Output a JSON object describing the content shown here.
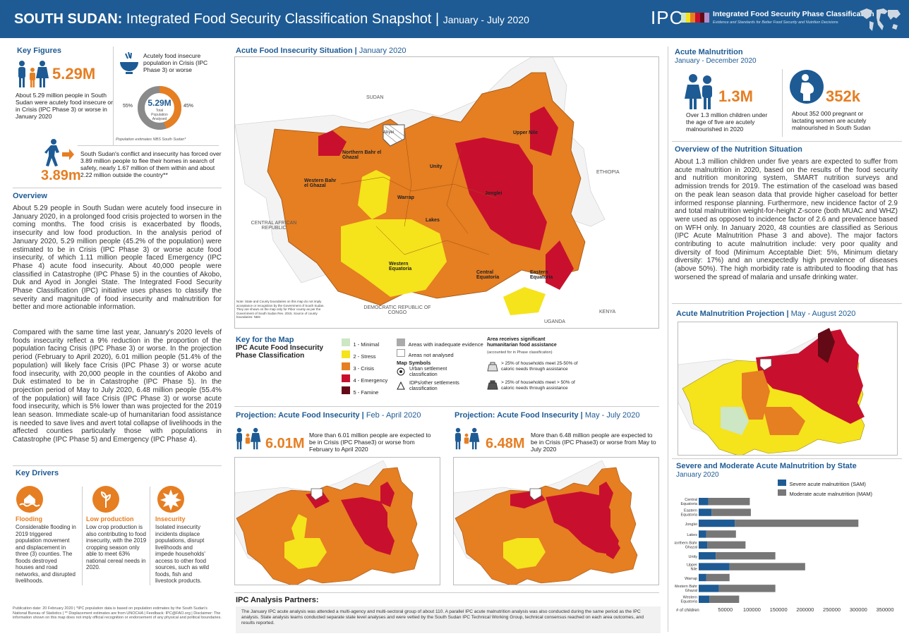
{
  "header": {
    "country": "SOUTH SUDAN:",
    "title": "Integrated Food Security Classification Snapshot",
    "sep": "|",
    "period": "January - July 2020",
    "ipc_logo": "IPC",
    "ipc_name": "Integrated Food Security Phase Classification",
    "ipc_tagline": "Evidence and Standards for Better Food Security and Nutrition Decisions"
  },
  "key_figures": {
    "title": "Key Figures",
    "figure1_value": "5.29M",
    "figure1_text": "About 5.29 million people in South Sudan were acutely food insecure or in Crisis (IPC Phase 3) or worse in January 2020",
    "donut_caption": "Acutely food insecure population in Crisis (IPC Phase 3) or worse",
    "donut_center_value": "5.29M",
    "donut_center_label": "Total Population Analysed",
    "donut_left_pct": "55%",
    "donut_right_pct": "45%",
    "donut_share": 45,
    "population_note": "Population estimates NBS South Sudan*",
    "displaced_value": "3.89m",
    "displaced_text": "South Sudan's conflict and insecurity has forced over 3.89 million people to flee their homes in search of safety, nearly 1.67 million of them within and about 2.22 million outside the country**"
  },
  "overview": {
    "title": "Overview",
    "para1": "About 5.29 people in South Sudan were acutely food insecure in January 2020, in a prolonged food crisis projected to worsen in the coming months. The food crisis is exacerbated by floods, insecurity and low food production. In the analysis period of January 2020, 5.29 million people (45.2% of the population) were estimated to be in Crisis (IPC Phase 3) or worse acute food insecurity, of which 1.11 million people faced Emergency (IPC Phase 4) acute food insecurity. About 40,000 people were classified in Catastrophe (IPC Phase 5) in the counties of Akobo, Duk and Ayod in Jonglei State. The Integrated Food Security Phase Classification (IPC) initiative uses phases to classify the severity and magnitude of food insecurity and malnutrition for better and more actionable information.",
    "para2": "Compared with the same time last year, January's 2020 levels of foods insecurity reflect a 9% reduction in the proportion of the population facing Crisis (IPC Phase 3) or worse. In the projection period (February to April 2020), 6.01 million people (51.4% of the population) will likely face Crisis (IPC Phase 3) or worse acute food insecurity, with 20,000 people in the counties of Akobo and Duk estimated to be in Catastrophe (IPC Phase 5). In the projection period of May to July 2020, 6.48 million people (55.4% of the population) will face Crisis (IPC Phase 3) or worse acute food insecurity, which is 5% lower than was projected for the 2019 lean season. Immediate scale-up of humanitarian food assistance is needed to save lives and avert total collapse of livelihoods in the affected counties particularly those with populations in Catastrophe (IPC Phase 5) and Emergency (IPC Phase 4)."
  },
  "key_drivers": {
    "title": "Key Drivers",
    "items": [
      {
        "title": "Flooding",
        "text": "Considerable flooding in 2019 triggered population movement and displacement in three (3) counties. The floods destroyed houses and road networks, and disrupted livelihoods."
      },
      {
        "title": "Low production",
        "text": "Low crop production is also contributing to food insecurity, with the 2019 cropping season only able to meet 63% national cereal needs in 2020."
      },
      {
        "title": "Insecurity",
        "text": "Isolated insecurity incidents displace populations, disrupt livelihoods and impede households' access to other food sources, such as wild foods, fish and livestock products."
      }
    ]
  },
  "footer_note": "Publication date: 20 February 2020 | *IPC population data is based on population estimates by the South Sudan's National Bureau of Statistics | ** Displacement estimates are from UNOCHA | Feedback: IPC@FAO.org | Disclaimer: The information shown on this map does not imply official recognition or endorsement of any physical and political boundaries.",
  "main_map": {
    "title": "Acute Food Insecurity Situation",
    "period": "January 2020",
    "labels": {
      "sudan": "SUDAN",
      "ethiopia": "ETHIOPIA",
      "car": "CENTRAL AFRICAN REPUBLIC",
      "drc": "DEMOCRATIC REPUBLIC OF CONGO",
      "uganda": "UGANDA",
      "kenya": "KENYA",
      "abyei": "Abyei",
      "s1": "Northern Bahr el Ghazal",
      "s2": "Western Bahr el Ghazal",
      "s3": "Warrap",
      "s4": "Unity",
      "s5": "Upper Nile",
      "s6": "Jonglei",
      "s7": "Lakes",
      "s8": "Western Equatoria",
      "s9": "Central Equatoria",
      "s10": "Eastern Equatoria"
    },
    "disclaimer": "Note: State and County boundaries on this map do not imply acceptance or recognition by the Government of South Sudan. They are shown on the map only for Pibor county as per the Government of South Sudan Rev. 2015. Source of county boundaries: NBS"
  },
  "legend": {
    "title1": "Key for the Map",
    "title2": "IPC Acute Food Insecurity Phase Classification",
    "phases": [
      {
        "label": "1 - Minimal",
        "color": "#cde6c3"
      },
      {
        "label": "2 - Stress",
        "color": "#f5e31c"
      },
      {
        "label": "3 - Crisis",
        "color": "#e67e22"
      },
      {
        "label": "4 - Emergency",
        "color": "#c8102e"
      },
      {
        "label": "5 - Famine",
        "color": "#640a16"
      }
    ],
    "inadequate": "Areas with inadequate evidence",
    "not_analysed": "Areas not analysed",
    "map_symbols": "Map Symbols",
    "urban": "Urban settlement classification",
    "idps": "IDPs/other settlements classification",
    "assistance_title": "Area receives significant humanitarian food assistance",
    "assistance_sub": "(accounted for in Phase classification)",
    "assist1": "> 25% of households meet 25-50% of caloric needs through assistance",
    "assist2": "> 25% of households meet > 50% of caloric needs through assistance"
  },
  "projection1": {
    "title": "Projection: Acute Food Insecurity",
    "period": "Feb - April 2020",
    "value": "6.01M",
    "text": "More than 6.01 million people are expected to be in Crisis (IPC Phase3) or worse from February to April 2020"
  },
  "projection2": {
    "title": "Projection: Acute Food Insecurity",
    "period": "May - July 2020",
    "value": "6.48M",
    "text": "More than 6.48 million people are expected to be in Crisis (IPC Phase3) or worse from May to July 2020"
  },
  "partners": {
    "title": "IPC Analysis Partners:",
    "text": "The January IPC acute analysis was attended a multi-agency and multi-sectoral group of about 110. A parallel IPC acute malnutrition analysis was also conducted during the same period as the IPC analysis. State analysis teams conducted separate state level analyses and were vetted by the South Sudan IPC Technical Working Group, technical consensus reached on each area outcomes, and results reported."
  },
  "malnutrition": {
    "title": "Acute Malnutrition",
    "period": "January - December 2020",
    "children_value": "1.3M",
    "children_text": "Over 1.3 million children under the age of five are acutely malnourished in 2020",
    "women_value": "352k",
    "women_text": "About 352 000 pregnant or lactating women are acutely malnourished in South Sudan"
  },
  "nutrition_overview": {
    "title": "Overview of the Nutrition Situation",
    "text": "About 1.3 million children under five years are expected to suffer from acute malnutrition in 2020, based on the results of the food security and nutrition monitoring system, SMART nutrition surveys and admission trends for 2019. The estimation of the caseload was based on the peak lean season data that provide higher caseload for better informed response planning. Furthermore, new incidence factor of 2.9 and total malnutrition weight-for-height Z-score (both MUAC and WHZ) were used as opposed to incidence factor of 2.6 and prevalence based on WFH only. In January 2020, 48 counties are classified as Serious (IPC Acute Malnutrition Phase 3 and above). The major factors contributing to acute malnutrition include: very poor quality and diversity of food (Minimum Acceptable Diet: 5%, Minimum dietary diversity: 17%) and an unexpectedly high prevalence of diseases (above 50%). The high morbidity rate is attributed to flooding that has worsened the spread of malaria and unsafe drinking water."
  },
  "am_projection": {
    "title": "Acute Malnutrition Projection",
    "period": "May - August 2020"
  },
  "colors": {
    "blue": "#1e5b94",
    "orange": "#e67e22",
    "red": "#c8102e",
    "yellow": "#f5e31c",
    "sam": "#1e5b94",
    "mam": "#777777"
  },
  "chart_data": {
    "type": "bar",
    "orientation": "horizontal",
    "stacked": true,
    "title": "Severe and Moderate Acute Malnutrition by State",
    "subtitle": "January 2020",
    "xlabel": "# of children",
    "xlim": [
      0,
      350000
    ],
    "ticks": [
      "50000",
      "100000",
      "150000",
      "200000",
      "250000",
      "300000",
      "350000"
    ],
    "tick_values": [
      50000,
      100000,
      150000,
      200000,
      250000,
      300000,
      350000
    ],
    "categories": [
      "Central Equatoria",
      "Eastern Equatoria",
      "Jonglei",
      "Lakes",
      "Northern Bahr Ghazal",
      "Unity",
      "Upper Nile",
      "Warrap",
      "Western Bahr Ghazal",
      "Western Equatoria"
    ],
    "series": [
      {
        "name": "Severe acute malnutrition (SAM)",
        "color": "#1e5b94",
        "values": [
          18000,
          24000,
          68000,
          14000,
          16000,
          32000,
          58000,
          14000,
          38000,
          20000
        ]
      },
      {
        "name": "Moderate acute malnutrition (MAM)",
        "color": "#777777",
        "values": [
          78000,
          74000,
          232000,
          56000,
          72000,
          112000,
          142000,
          44000,
          106000,
          56000
        ]
      }
    ],
    "legend_position": "top-right"
  }
}
